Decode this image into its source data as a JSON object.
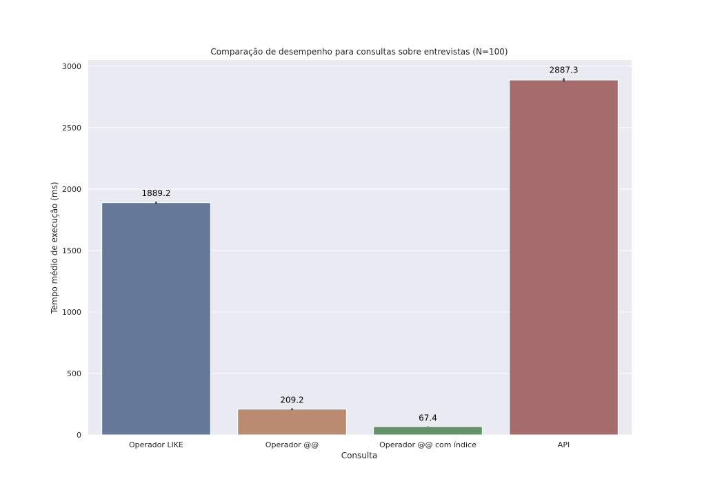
{
  "chart_data": {
    "type": "bar",
    "title": "Comparação de desempenho para consultas sobre entrevistas (N=100)",
    "xlabel": "Consulta",
    "ylabel": "Tempo médio de execução (ms)",
    "categories": [
      "Operador LIKE",
      "Operador @@",
      "Operador @@ com índice",
      "API"
    ],
    "values": [
      1889.2,
      209.2,
      67.4,
      2887.3
    ],
    "data_labels": [
      "1889.2",
      "209.2",
      "67.4",
      "2887.3"
    ],
    "error_bars": [
      [
        1880,
        1898
      ],
      [
        202,
        216
      ],
      [
        66,
        69
      ],
      [
        2873,
        2902
      ]
    ],
    "bar_colors": [
      "#66789a",
      "#b98b71",
      "#65906c",
      "#a66c6d"
    ],
    "ylim": [
      0,
      3050
    ],
    "yticks": [
      0,
      500,
      1000,
      1500,
      2000,
      2500,
      3000
    ],
    "ytick_labels": [
      "0",
      "500",
      "1000",
      "1500",
      "2000",
      "2500",
      "3000"
    ],
    "grid": true,
    "background_color": "#eaeaf2"
  }
}
